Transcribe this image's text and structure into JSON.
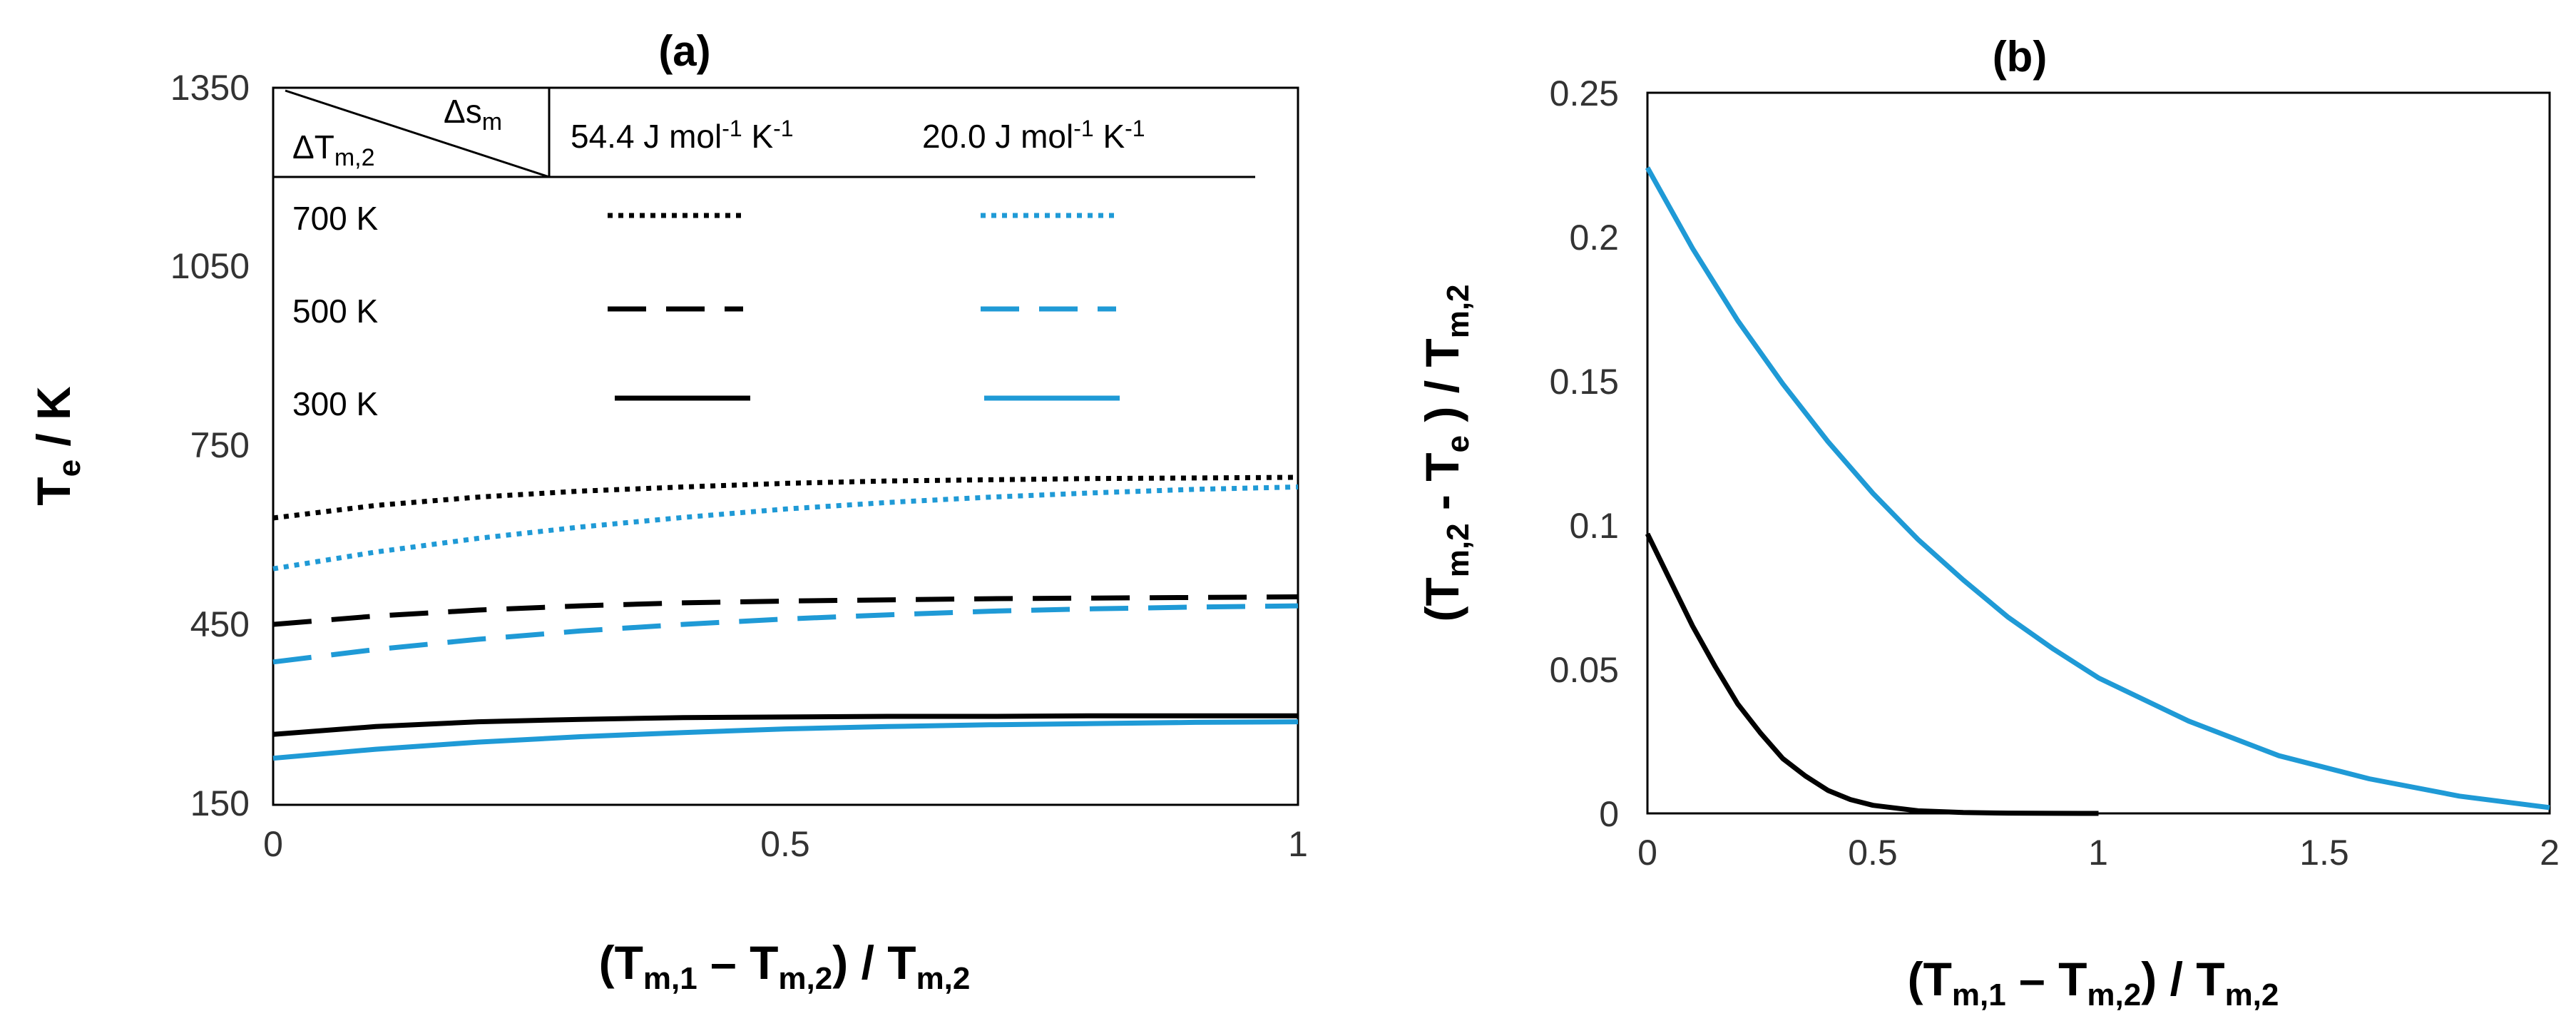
{
  "colors": {
    "black": "#000000",
    "blue": "#1f9ad6"
  },
  "chart_data": [
    {
      "panel": "(a)",
      "type": "line",
      "title": "(a)",
      "ylabel": {
        "main": "T",
        "sub": "e",
        "rest": " / K"
      },
      "xlabel": {
        "p1": "(T",
        "s1": "m,1",
        "p2": " – T",
        "s2": "m,2",
        "p3": ") / T",
        "s3": "m,2"
      },
      "xlim": [
        0,
        1
      ],
      "ylim": [
        150,
        1350
      ],
      "xticks": [
        "0",
        "0.5",
        "1"
      ],
      "yticks": [
        "150",
        "450",
        "750",
        "1050",
        "1350"
      ],
      "legend": {
        "corner_top": {
          "main": "Δs",
          "sub": "m"
        },
        "corner_bottom": {
          "main": "ΔT",
          "sub": "m,2"
        },
        "col1": {
          "a": "54.4 J mol",
          "b": "-1",
          "c": " K",
          "d": "-1"
        },
        "col2": {
          "a": "20.0 J mol",
          "b": "-1",
          "c": " K",
          "d": "-1"
        },
        "rows": [
          "700 K",
          "500 K",
          "300 K"
        ]
      },
      "series": [
        {
          "name": "700 K, 54.4 J mol-1 K-1",
          "color": "black",
          "style": "dotted",
          "x": [
            0,
            0.1,
            0.2,
            0.3,
            0.4,
            0.5,
            0.6,
            0.7,
            0.8,
            0.9,
            1.0
          ],
          "y": [
            630,
            651,
            665,
            675,
            682,
            688,
            692,
            694,
            696,
            697,
            698
          ]
        },
        {
          "name": "700 K, 20.0 J mol-1 K-1",
          "color": "blue",
          "style": "dotted",
          "x": [
            0,
            0.1,
            0.2,
            0.3,
            0.4,
            0.5,
            0.6,
            0.7,
            0.8,
            0.9,
            1.0
          ],
          "y": [
            545,
            573,
            596,
            615,
            631,
            645,
            656,
            665,
            672,
            678,
            682
          ]
        },
        {
          "name": "500 K, 54.4 J mol-1 K-1",
          "color": "black",
          "style": "dashed",
          "x": [
            0,
            0.1,
            0.2,
            0.3,
            0.4,
            0.5,
            0.6,
            0.7,
            0.8,
            0.9,
            1.0
          ],
          "y": [
            452,
            466,
            476,
            483,
            488,
            491,
            493,
            495,
            496,
            497,
            498
          ]
        },
        {
          "name": "500 K, 20.0 J mol-1 K-1",
          "color": "blue",
          "style": "dashed",
          "x": [
            0,
            0.1,
            0.2,
            0.3,
            0.4,
            0.5,
            0.6,
            0.7,
            0.8,
            0.9,
            1.0
          ],
          "y": [
            389,
            410,
            427,
            441,
            452,
            461,
            468,
            474,
            478,
            481,
            483
          ]
        },
        {
          "name": "300 K, 54.4 J mol-1 K-1",
          "color": "black",
          "style": "solid",
          "x": [
            0,
            0.1,
            0.2,
            0.3,
            0.4,
            0.5,
            0.6,
            0.7,
            0.8,
            0.9,
            1.0
          ],
          "y": [
            268,
            281,
            289,
            293,
            296,
            297,
            298,
            298,
            299,
            299,
            299
          ]
        },
        {
          "name": "300 K, 20.0 J mol-1 K-1",
          "color": "blue",
          "style": "solid",
          "x": [
            0,
            0.1,
            0.2,
            0.3,
            0.4,
            0.5,
            0.6,
            0.7,
            0.8,
            0.9,
            1.0
          ],
          "y": [
            228,
            243,
            255,
            264,
            271,
            277,
            281,
            284,
            286,
            288,
            289
          ]
        }
      ]
    },
    {
      "panel": "(b)",
      "type": "line",
      "title": "(b)",
      "ylabel": {
        "p1": "(T",
        "s1": "m,2",
        "p2": " - T",
        "s2": "e",
        "p3": " ) / T",
        "s3": "m,2"
      },
      "xlabel": {
        "p1": "(T",
        "s1": "m,1",
        "p2": " – T",
        "s2": "m,2",
        "p3": ") / T",
        "s3": "m,2"
      },
      "xlim": [
        0,
        2
      ],
      "ylim": [
        0,
        0.25
      ],
      "xticks": [
        "0",
        "0.5",
        "1",
        "1.5",
        "2"
      ],
      "yticks": [
        "0",
        "0.05",
        "0.1",
        "0.15",
        "0.2",
        "0.25"
      ],
      "series": [
        {
          "name": "54.4 J mol-1 K-1",
          "color": "black",
          "style": "solid",
          "x": [
            0,
            0.05,
            0.1,
            0.15,
            0.2,
            0.25,
            0.3,
            0.35,
            0.4,
            0.45,
            0.5,
            0.6,
            0.7,
            0.8,
            0.9,
            1.0
          ],
          "y": [
            0.097,
            0.081,
            0.065,
            0.051,
            0.038,
            0.028,
            0.019,
            0.013,
            0.008,
            0.0048,
            0.0028,
            0.0009,
            0.0003,
            0.0001,
            3e-05,
            0.0
          ]
        },
        {
          "name": "20.0 J mol-1 K-1",
          "color": "blue",
          "style": "solid",
          "x": [
            0,
            0.1,
            0.2,
            0.3,
            0.4,
            0.5,
            0.6,
            0.7,
            0.8,
            0.9,
            1.0,
            1.2,
            1.4,
            1.6,
            1.8,
            2.0
          ],
          "y": [
            0.224,
            0.196,
            0.171,
            0.149,
            0.129,
            0.111,
            0.095,
            0.081,
            0.068,
            0.057,
            0.047,
            0.032,
            0.02,
            0.012,
            0.006,
            0.002
          ]
        }
      ]
    }
  ]
}
